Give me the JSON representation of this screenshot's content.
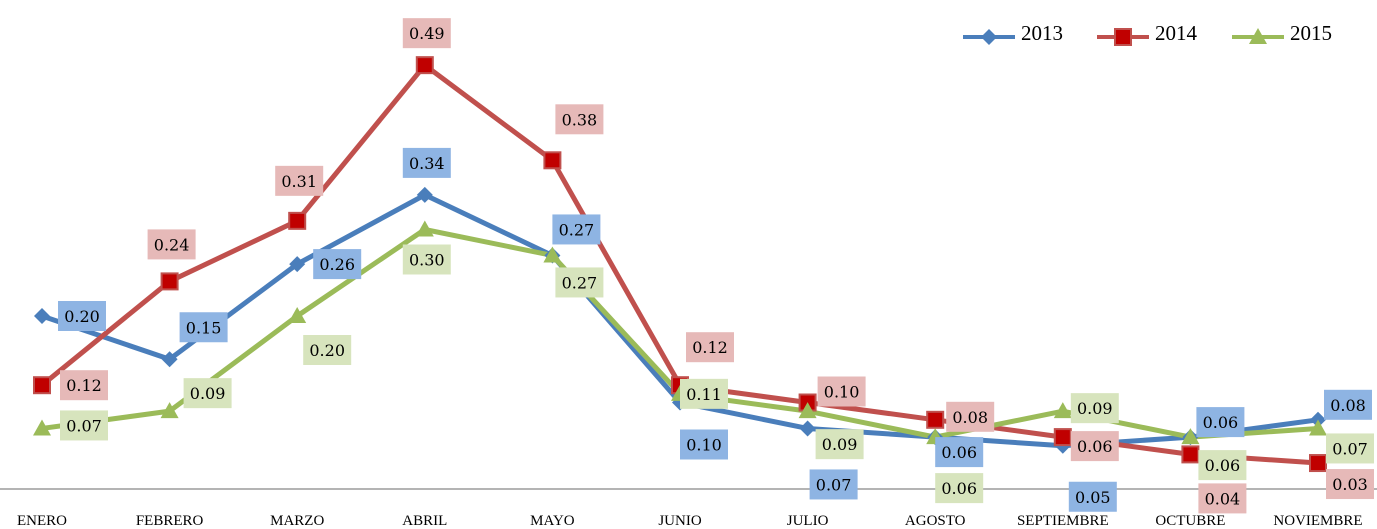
{
  "chart_data": {
    "type": "line",
    "categories": [
      "ENERO",
      "FEBRERO",
      "MARZO",
      "ABRIL",
      "MAYO",
      "JUNIO",
      "JULIO",
      "AGOSTO",
      "SEPTIEMBRE",
      "OCTUBRE",
      "NOVIEMBRE"
    ],
    "series": [
      {
        "name": "2013",
        "color": "#4a7ebb",
        "marker": "diamond",
        "label_bg": "#8eb4e3",
        "values": [
          0.2,
          0.15,
          0.26,
          0.34,
          0.27,
          0.1,
          0.07,
          0.06,
          0.05,
          0.06,
          0.08
        ],
        "labels": [
          "0.20",
          "0.15",
          "0.26",
          "0.34",
          "0.27",
          "0.10",
          "0.07",
          "0.06",
          "0.05",
          "0.06",
          "0.08"
        ]
      },
      {
        "name": "2014",
        "color": "#c0504d",
        "marker": "square",
        "label_bg": "#e6b9b8",
        "values": [
          0.12,
          0.24,
          0.31,
          0.49,
          0.38,
          0.12,
          0.1,
          0.08,
          0.06,
          0.04,
          0.03
        ],
        "labels": [
          "0.12",
          "0.24",
          "0.31",
          "0.49",
          "0.38",
          "0.12",
          "0.10",
          "0.08",
          "0.06",
          "0.04",
          "0.03"
        ]
      },
      {
        "name": "2015",
        "color": "#9bbb59",
        "marker": "triangle",
        "label_bg": "#d7e4bd",
        "values": [
          0.07,
          0.09,
          0.2,
          0.3,
          0.27,
          0.11,
          0.09,
          0.06,
          0.09,
          0.06,
          0.07
        ],
        "labels": [
          "0.07",
          "0.09",
          "0.20",
          "0.30",
          "0.27",
          "0.11",
          "0.09",
          "0.06",
          "0.09",
          "0.06",
          "0.07"
        ]
      }
    ],
    "ylim": [
      0,
      0.52
    ],
    "grid": false,
    "legend": "top-right"
  }
}
